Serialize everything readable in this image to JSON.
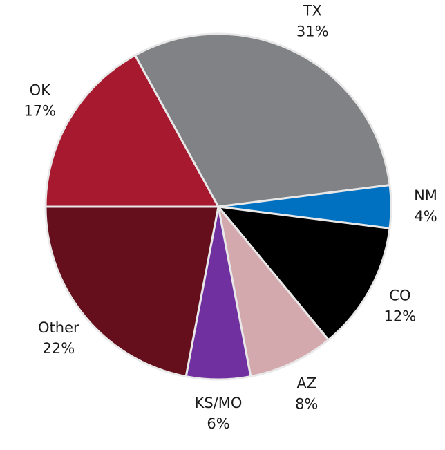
{
  "chart_data": {
    "type": "pie",
    "categories": [
      "OK",
      "TX",
      "NM",
      "CO",
      "AZ",
      "KS/MO",
      "Other"
    ],
    "values": [
      17,
      31,
      4,
      12,
      8,
      6,
      22
    ],
    "value_labels": [
      "17%",
      "31%",
      "4%",
      "12%",
      "8%",
      "6%",
      "22%"
    ],
    "colors": [
      "#a6192e",
      "#808285",
      "#0070c0",
      "#000000",
      "#d4a9ae",
      "#7030a0",
      "#660f1c"
    ]
  }
}
